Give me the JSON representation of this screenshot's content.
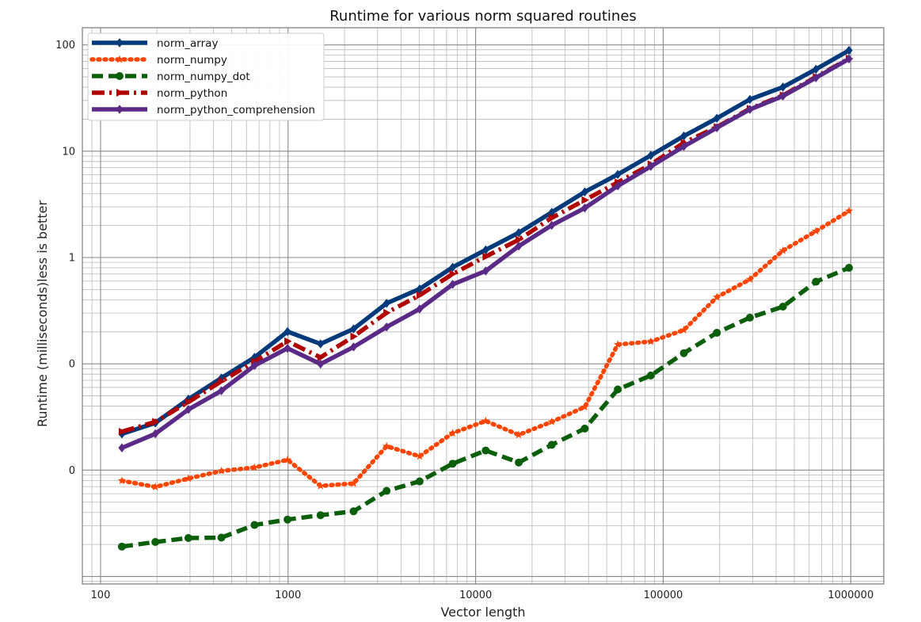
{
  "chart_data": {
    "type": "line",
    "title": "Runtime for various norm squared routines",
    "xlabel": "Vector length",
    "ylabel": "Runtime (milliseconds)less is better",
    "x_scale": "log",
    "y_scale": "log",
    "xlim": [
      80,
      1500000
    ],
    "ylim": [
      0.00085,
      145
    ],
    "x_ticks": [
      100,
      1000,
      10000,
      100000,
      1000000
    ],
    "x_tick_labels": [
      "100",
      "1000",
      "10000",
      "100000",
      "1000000"
    ],
    "y_ticks": [
      0.01,
      0.1,
      1,
      10,
      100
    ],
    "y_tick_labels": [
      "0",
      "0",
      "1",
      "10",
      "100"
    ],
    "grid": true,
    "legend_position": "top-left",
    "x": [
      130,
      196,
      294,
      441,
      662,
      993,
      1489,
      2234,
      3351,
      5027,
      7541,
      11312,
      16968,
      25452,
      38178,
      57267,
      85901,
      128851,
      193277,
      289916,
      434874,
      652311,
      978466
    ],
    "series": [
      {
        "name": "norm_array",
        "color": "#003a7a",
        "style": "solid",
        "marker": "diamond",
        "values": [
          0.0219,
          0.0278,
          0.0465,
          0.0735,
          0.115,
          0.201,
          0.154,
          0.213,
          0.371,
          0.506,
          0.809,
          1.18,
          1.71,
          2.66,
          4.14,
          6.05,
          9.13,
          13.9,
          20.4,
          30.7,
          40.1,
          59.0,
          88.7
        ]
      },
      {
        "name": "norm_numpy",
        "color": "#ff4500",
        "style": "dotted",
        "marker": "star",
        "values": [
          0.00795,
          0.00695,
          0.00834,
          0.00983,
          0.0106,
          0.0125,
          0.00711,
          0.0075,
          0.0168,
          0.0135,
          0.0223,
          0.029,
          0.0215,
          0.0285,
          0.0393,
          0.152,
          0.162,
          0.208,
          0.424,
          0.623,
          1.16,
          1.77,
          2.74
        ]
      },
      {
        "name": "norm_numpy_dot",
        "color": "#0b5f0b",
        "style": "dashed",
        "marker": "circle",
        "values": [
          0.00191,
          0.00211,
          0.0023,
          0.00232,
          0.00305,
          0.00343,
          0.00377,
          0.0041,
          0.00638,
          0.00784,
          0.0115,
          0.0153,
          0.0118,
          0.0173,
          0.0246,
          0.0574,
          0.0777,
          0.126,
          0.196,
          0.272,
          0.345,
          0.592,
          0.8
        ]
      },
      {
        "name": "norm_python",
        "color": "#b00000",
        "style": "dashdot",
        "marker": "triangle-right",
        "values": [
          0.023,
          0.0285,
          0.0437,
          0.0685,
          0.105,
          0.163,
          0.115,
          0.181,
          0.302,
          0.442,
          0.7,
          1.02,
          1.47,
          2.36,
          3.47,
          5.09,
          7.52,
          12.0,
          16.9,
          25.1,
          33.5,
          49.9,
          74.2
        ]
      },
      {
        "name": "norm_python_comprehension",
        "color": "#5b2a86",
        "style": "solid",
        "marker": "diamond",
        "values": [
          0.0162,
          0.022,
          0.0372,
          0.0558,
          0.0962,
          0.14,
          0.0996,
          0.144,
          0.222,
          0.328,
          0.559,
          0.747,
          1.28,
          2.01,
          2.92,
          4.72,
          7.19,
          11.1,
          16.6,
          24.7,
          33.0,
          49.1,
          73.8
        ]
      }
    ]
  }
}
